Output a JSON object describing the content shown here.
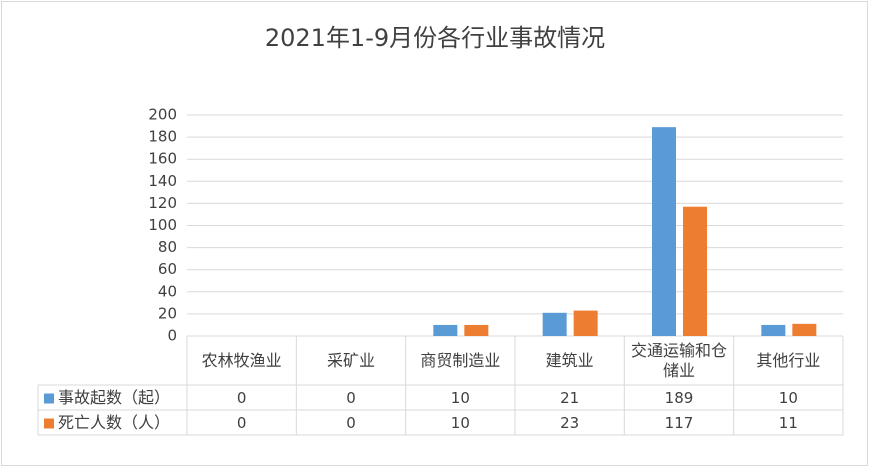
{
  "chart_data": {
    "type": "bar",
    "title": "2021年1-9月份各行业事故情况",
    "categories": [
      "农林牧渔业",
      "采矿业",
      "商贸制造业",
      "建筑业",
      "交通运输和仓储业",
      "其他行业"
    ],
    "series": [
      {
        "name": "事故起数（起）",
        "color": "#5b9bd5",
        "values": [
          0,
          0,
          10,
          21,
          189,
          10
        ]
      },
      {
        "name": "死亡人数（人）",
        "color": "#ed7d31",
        "values": [
          0,
          0,
          10,
          23,
          117,
          11
        ]
      }
    ],
    "ylim": [
      0,
      200
    ],
    "yticks": [
      0,
      20,
      40,
      60,
      80,
      100,
      120,
      140,
      160,
      180,
      200
    ],
    "grid": true
  }
}
